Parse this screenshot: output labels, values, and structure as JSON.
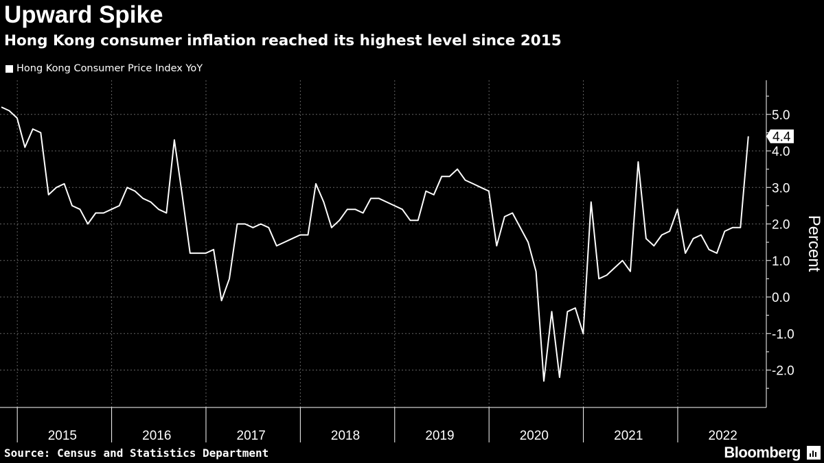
{
  "header": {
    "title": "Upward Spike",
    "subtitle": "Hong Kong consumer inflation reached its highest level since 2015"
  },
  "footer": {
    "source": "Source: Census and Statistics Department",
    "brand": "Bloomberg",
    "brand_icon": "bloomberg-terminal-icon"
  },
  "colors": {
    "background": "#000000",
    "line": "#ffffff",
    "grid": "#666666"
  },
  "chart_data": {
    "type": "line",
    "title": "Upward Spike",
    "subtitle": "Hong Kong consumer inflation reached its highest level since 2015",
    "ylabel": "Percent",
    "xlabel": "",
    "legend": {
      "position": "top-left",
      "entries": [
        "Hong Kong Consumer Price Index YoY"
      ]
    },
    "ylim": [
      -3.0,
      6.0
    ],
    "yticks": [
      -2.0,
      -1.0,
      0.0,
      1.0,
      2.0,
      3.0,
      4.0,
      5.0
    ],
    "ytick_labels": [
      "-2.0",
      "-1.0",
      "0.0",
      "1.0",
      "2.0",
      "3.0",
      "4.0",
      "5.0"
    ],
    "grid": true,
    "x_start_month": "2014-11",
    "year_labels": [
      "2015",
      "2016",
      "2017",
      "2018",
      "2019",
      "2020",
      "2021",
      "2022"
    ],
    "last_value_label": "4.4",
    "series": [
      {
        "name": "Hong Kong Consumer Price Index YoY",
        "values": [
          5.2,
          5.1,
          4.9,
          4.1,
          4.6,
          4.5,
          2.8,
          3.0,
          3.1,
          2.5,
          2.4,
          2.0,
          2.3,
          2.3,
          2.4,
          2.5,
          3.0,
          2.9,
          2.7,
          2.6,
          2.4,
          2.3,
          4.3,
          2.8,
          1.2,
          1.2,
          1.2,
          1.3,
          -0.1,
          0.5,
          2.0,
          2.0,
          1.9,
          2.0,
          1.9,
          1.4,
          1.5,
          1.6,
          1.7,
          1.7,
          3.1,
          2.6,
          1.9,
          2.1,
          2.4,
          2.4,
          2.3,
          2.7,
          2.7,
          2.6,
          2.5,
          2.4,
          2.1,
          2.1,
          2.9,
          2.8,
          3.3,
          3.3,
          3.5,
          3.2,
          3.1,
          3.0,
          2.9,
          1.4,
          2.2,
          2.3,
          1.9,
          1.5,
          0.7,
          -2.3,
          -0.4,
          -2.2,
          -0.4,
          -0.3,
          -1.0,
          2.6,
          0.5,
          0.6,
          0.8,
          1.0,
          0.7,
          3.7,
          1.6,
          1.4,
          1.7,
          1.8,
          2.4,
          1.2,
          1.6,
          1.7,
          1.3,
          1.2,
          1.8,
          1.9,
          1.9,
          4.4
        ]
      }
    ]
  }
}
